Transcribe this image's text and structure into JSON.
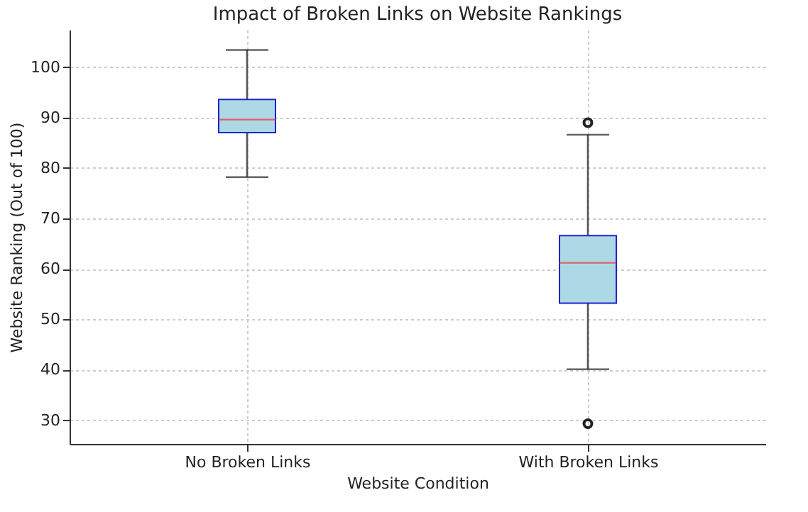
{
  "chart_data": {
    "type": "box",
    "title": "Impact of Broken Links on Website Rankings",
    "xlabel": "Website Condition",
    "ylabel": "Website Ranking (Out of 100)",
    "categories": [
      "No Broken Links",
      "With Broken Links"
    ],
    "boxes": [
      {
        "low": 78.2,
        "q1": 87.0,
        "median": 89.6,
        "q3": 93.6,
        "high": 103.4
      },
      {
        "low": 40.1,
        "q1": 53.2,
        "median": 61.2,
        "q3": 66.6,
        "high": 86.6,
        "outliers": [
          89.0,
          29.3
        ]
      }
    ],
    "color": "#add8e6",
    "ylim": [
      25.3,
      107.4
    ],
    "yticks": [
      30,
      40,
      50,
      60,
      70,
      80,
      90,
      100
    ],
    "grid": true
  }
}
